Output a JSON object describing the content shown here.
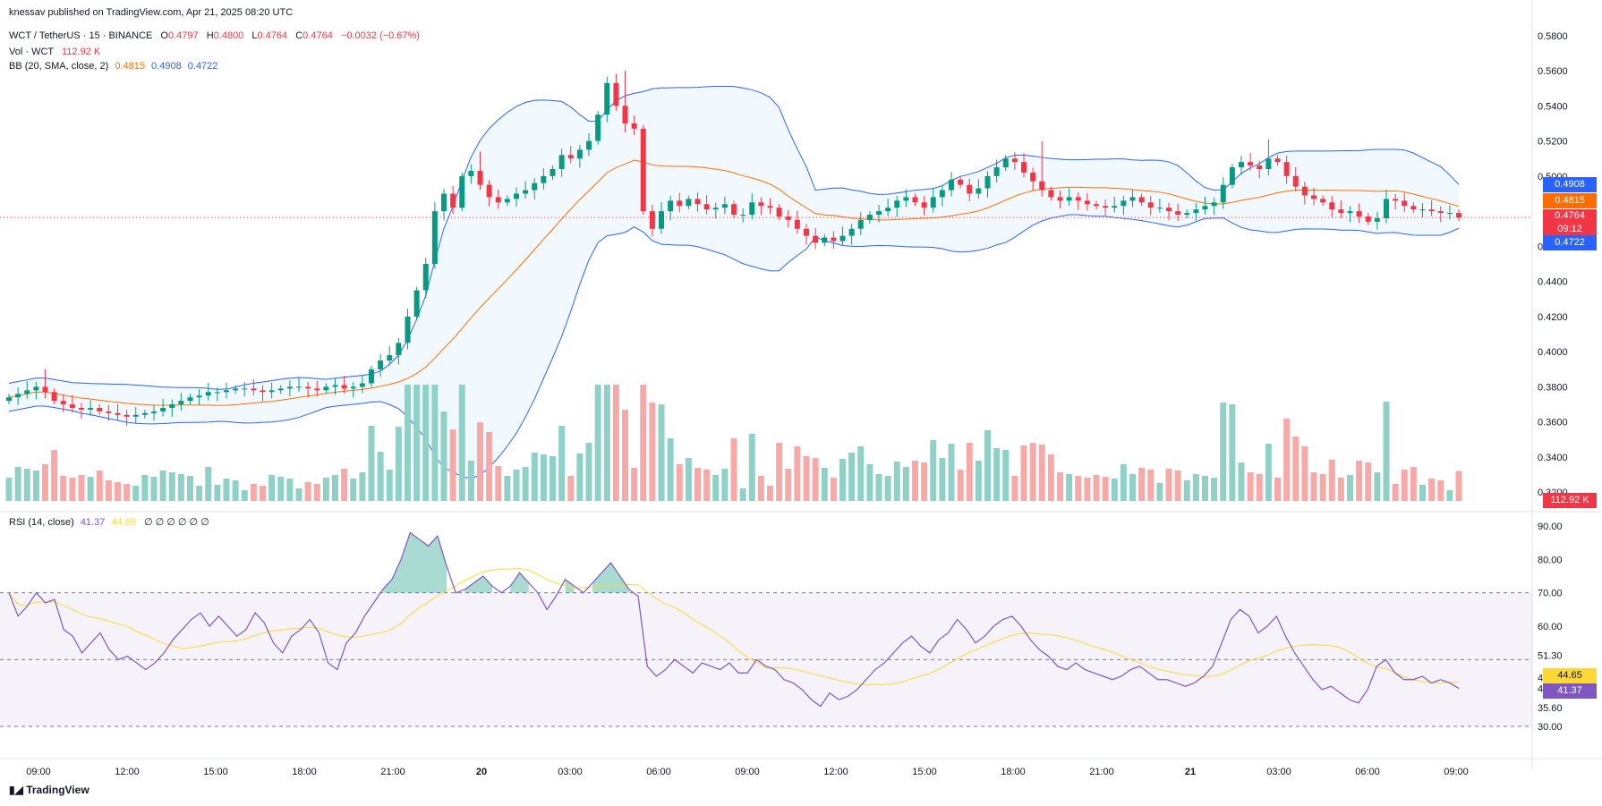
{
  "header": {
    "published": "knessav published on TradingView.com, Apr 21, 2025 08:20 UTC",
    "symbol": "WCT / TetherUS · 15 · BINANCE",
    "o_label": "O",
    "o": "0.4797",
    "h_label": "H",
    "h": "0.4800",
    "l_label": "L",
    "l": "0.4764",
    "c_label": "C",
    "c": "0.4764",
    "change": "−0.0032 (−0.67%)",
    "vol_label": "Vol · WCT",
    "vol": "112.92 K",
    "bb_label": "BB (20, SMA, close, 2)",
    "bb_mid": "0.4815",
    "bb_up": "0.4908",
    "bb_low": "0.4722",
    "rsi_label": "RSI (14, close)",
    "rsi": "41.37",
    "rsi_ma": "44.65",
    "rsi_extra": "∅ ∅ ∅ ∅ ∅ ∅"
  },
  "price_badges": {
    "bb_up": "0.4908",
    "bb_mid": "0.4815",
    "last": "0.4764",
    "countdown": "09:12",
    "bb_low": "0.4722",
    "volume": "112.92 K",
    "rsi_ma": "44.65",
    "rsi": "41.37"
  },
  "colors": {
    "up": "#089981",
    "down": "#f23645",
    "bb_band": "#2962ff",
    "bb_mid": "#ff6d00",
    "rsi": "#7e57c2",
    "rsi_ma": "#fdd835",
    "vol_up": "#8fd1c6",
    "vol_down": "#f7a9a7"
  },
  "brand": "TradingView",
  "chart_data": [
    {
      "type": "candlestick",
      "title": "WCT / TetherUS · 15 · BINANCE",
      "ylim": [
        0.315,
        0.585
      ],
      "yticks": [
        "0.5800",
        "0.5600",
        "0.5400",
        "0.5200",
        "0.5000",
        "0.4600",
        "0.4400",
        "0.4200",
        "0.4000",
        "0.3800",
        "0.3600",
        "0.3400",
        "0.3200"
      ],
      "xticks": [
        "09:00",
        "12:00",
        "15:00",
        "18:00",
        "21:00",
        "20",
        "03:00",
        "06:00",
        "09:00",
        "12:00",
        "15:00",
        "18:00",
        "21:00",
        "21",
        "03:00",
        "06:00",
        "09:00"
      ],
      "close": [
        0.374,
        0.376,
        0.378,
        0.38,
        0.377,
        0.372,
        0.37,
        0.368,
        0.367,
        0.368,
        0.366,
        0.365,
        0.364,
        0.363,
        0.364,
        0.365,
        0.366,
        0.368,
        0.37,
        0.372,
        0.374,
        0.375,
        0.377,
        0.377,
        0.378,
        0.379,
        0.379,
        0.378,
        0.377,
        0.378,
        0.379,
        0.38,
        0.38,
        0.379,
        0.378,
        0.38,
        0.381,
        0.379,
        0.38,
        0.382,
        0.39,
        0.395,
        0.398,
        0.405,
        0.42,
        0.435,
        0.45,
        0.48,
        0.49,
        0.482,
        0.5,
        0.503,
        0.495,
        0.488,
        0.485,
        0.487,
        0.49,
        0.492,
        0.496,
        0.5,
        0.504,
        0.512,
        0.51,
        0.515,
        0.52,
        0.535,
        0.553,
        0.54,
        0.53,
        0.527,
        0.48,
        0.47,
        0.48,
        0.486,
        0.483,
        0.487,
        0.484,
        0.481,
        0.482,
        0.484,
        0.478,
        0.478,
        0.485,
        0.483,
        0.482,
        0.477,
        0.475,
        0.47,
        0.466,
        0.462,
        0.465,
        0.463,
        0.466,
        0.47,
        0.475,
        0.478,
        0.48,
        0.482,
        0.486,
        0.488,
        0.485,
        0.482,
        0.488,
        0.492,
        0.498,
        0.495,
        0.49,
        0.493,
        0.5,
        0.505,
        0.51,
        0.508,
        0.502,
        0.497,
        0.492,
        0.488,
        0.486,
        0.488,
        0.486,
        0.484,
        0.483,
        0.482,
        0.483,
        0.486,
        0.488,
        0.485,
        0.482,
        0.482,
        0.48,
        0.478,
        0.479,
        0.481,
        0.483,
        0.485,
        0.495,
        0.505,
        0.508,
        0.506,
        0.504,
        0.51,
        0.508,
        0.5,
        0.494,
        0.489,
        0.487,
        0.485,
        0.481,
        0.479,
        0.48,
        0.477,
        0.474,
        0.476,
        0.487,
        0.486,
        0.483,
        0.481,
        0.481,
        0.48,
        0.479,
        0.479,
        0.4764
      ],
      "high_spikes": [
        {
          "i": 68,
          "v": 0.56
        },
        {
          "i": 52,
          "v": 0.514
        },
        {
          "i": 114,
          "v": 0.52
        },
        {
          "i": 139,
          "v": 0.521
        },
        {
          "i": 4,
          "v": 0.39
        }
      ],
      "volume_max_label": "112.92 K",
      "bollinger": {
        "period": 20,
        "stddev": 2,
        "last_upper": 0.4908,
        "last_mid": 0.4815,
        "last_lower": 0.4722
      }
    },
    {
      "type": "line",
      "title": "RSI (14, close)",
      "ylim": [
        30,
        90
      ],
      "yticks": [
        "90.00",
        "80.00",
        "70.00",
        "60.00",
        "51.30",
        "44.65",
        "41.37",
        "35.60",
        "30.00"
      ],
      "bands": [
        30,
        70
      ],
      "mid": 50,
      "rsi": [
        70,
        63,
        66,
        70,
        67,
        68,
        59,
        57,
        52,
        55,
        58,
        53,
        50,
        51,
        49,
        47,
        49,
        52,
        56,
        59,
        62,
        64,
        60,
        63,
        60,
        57,
        59,
        64,
        61,
        55,
        52,
        57,
        59,
        62,
        58,
        49,
        47,
        55,
        58,
        63,
        67,
        71,
        74,
        80,
        88,
        86,
        84,
        87,
        78,
        70,
        71,
        73,
        75,
        72,
        70,
        72,
        76,
        73,
        70,
        65,
        69,
        74,
        72,
        70,
        73,
        76,
        79,
        75,
        71,
        69,
        48,
        45,
        47,
        50,
        48,
        46,
        49,
        48,
        47,
        49,
        46,
        46,
        50,
        48,
        47,
        44,
        43,
        41,
        38,
        36,
        40,
        38,
        39,
        41,
        44,
        47,
        49,
        52,
        55,
        57,
        54,
        52,
        56,
        58,
        62,
        59,
        55,
        57,
        60,
        62,
        63,
        60,
        56,
        53,
        51,
        48,
        47,
        49,
        47,
        46,
        45,
        44,
        45,
        47,
        48,
        46,
        44,
        44,
        43,
        42,
        43,
        45,
        48,
        55,
        62,
        65,
        63,
        58,
        60,
        63,
        57,
        52,
        48,
        44,
        41,
        42,
        40,
        38,
        37,
        41,
        48,
        50,
        46,
        44,
        44,
        45,
        43,
        44,
        43,
        41.37
      ],
      "rsi_ma_last": 44.65
    }
  ]
}
